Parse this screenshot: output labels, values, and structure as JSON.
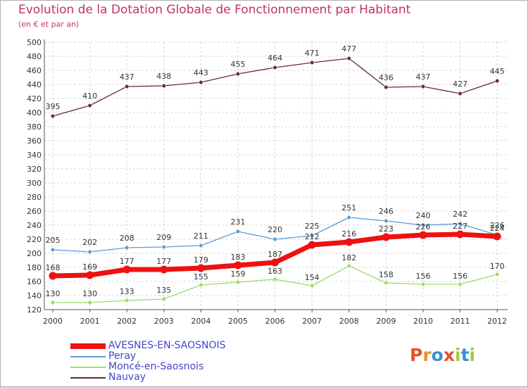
{
  "page": {
    "title": "Evolution de la Dotation Globale de Fonctionnement par Habitant",
    "subtitle": "(en € et par an)"
  },
  "logo": {
    "text": "Proxiti",
    "letters": [
      "P",
      "r",
      "o",
      "x",
      "i",
      "t",
      "i"
    ],
    "letter_colors": [
      "#e8502a",
      "#e8902a",
      "#3a8fd8",
      "#e8502a",
      "#9bcf3a",
      "#3a8fd8",
      "#9bcf3a"
    ]
  },
  "colors": {
    "title": "#c0336b",
    "grid": "#d6d6d6",
    "axis": "#555555",
    "axis_tick_text": "#333333",
    "legend_text": "#4444cc"
  },
  "chart_data": {
    "type": "line",
    "title": "Evolution de la Dotation Globale de Fonctionnement par Habitant",
    "subtitle": "(en € et par an)",
    "xlabel": "",
    "ylabel": "",
    "x": [
      "2000",
      "2001",
      "2002",
      "2003",
      "2004",
      "2005",
      "2006",
      "2007",
      "2008",
      "2009",
      "2010",
      "2011",
      "2012"
    ],
    "ylim": [
      120,
      500
    ],
    "yticks": [
      120,
      140,
      160,
      180,
      200,
      220,
      240,
      260,
      280,
      300,
      320,
      340,
      360,
      380,
      400,
      420,
      440,
      460,
      480,
      500
    ],
    "grid": true,
    "legend_position": "bottom-left",
    "series": [
      {
        "name": "AVESNES-EN-SAOSNOIS",
        "color": "#ee1111",
        "values": [
          168,
          169,
          177,
          177,
          179,
          183,
          187,
          212,
          216,
          223,
          226,
          227,
          224
        ]
      },
      {
        "name": "Peray",
        "color": "#5b9bd5",
        "values": [
          205,
          202,
          208,
          209,
          211,
          231,
          220,
          225,
          251,
          246,
          240,
          242,
          226
        ]
      },
      {
        "name": "Moncé-en-Saosnois",
        "color": "#99dd66",
        "values": [
          130,
          130,
          133,
          135,
          155,
          159,
          163,
          154,
          182,
          158,
          156,
          156,
          170
        ]
      },
      {
        "name": "Nauvay",
        "color": "#6b2a2a",
        "values": [
          395,
          410,
          437,
          438,
          443,
          455,
          464,
          471,
          477,
          436,
          437,
          427,
          445
        ]
      }
    ]
  }
}
